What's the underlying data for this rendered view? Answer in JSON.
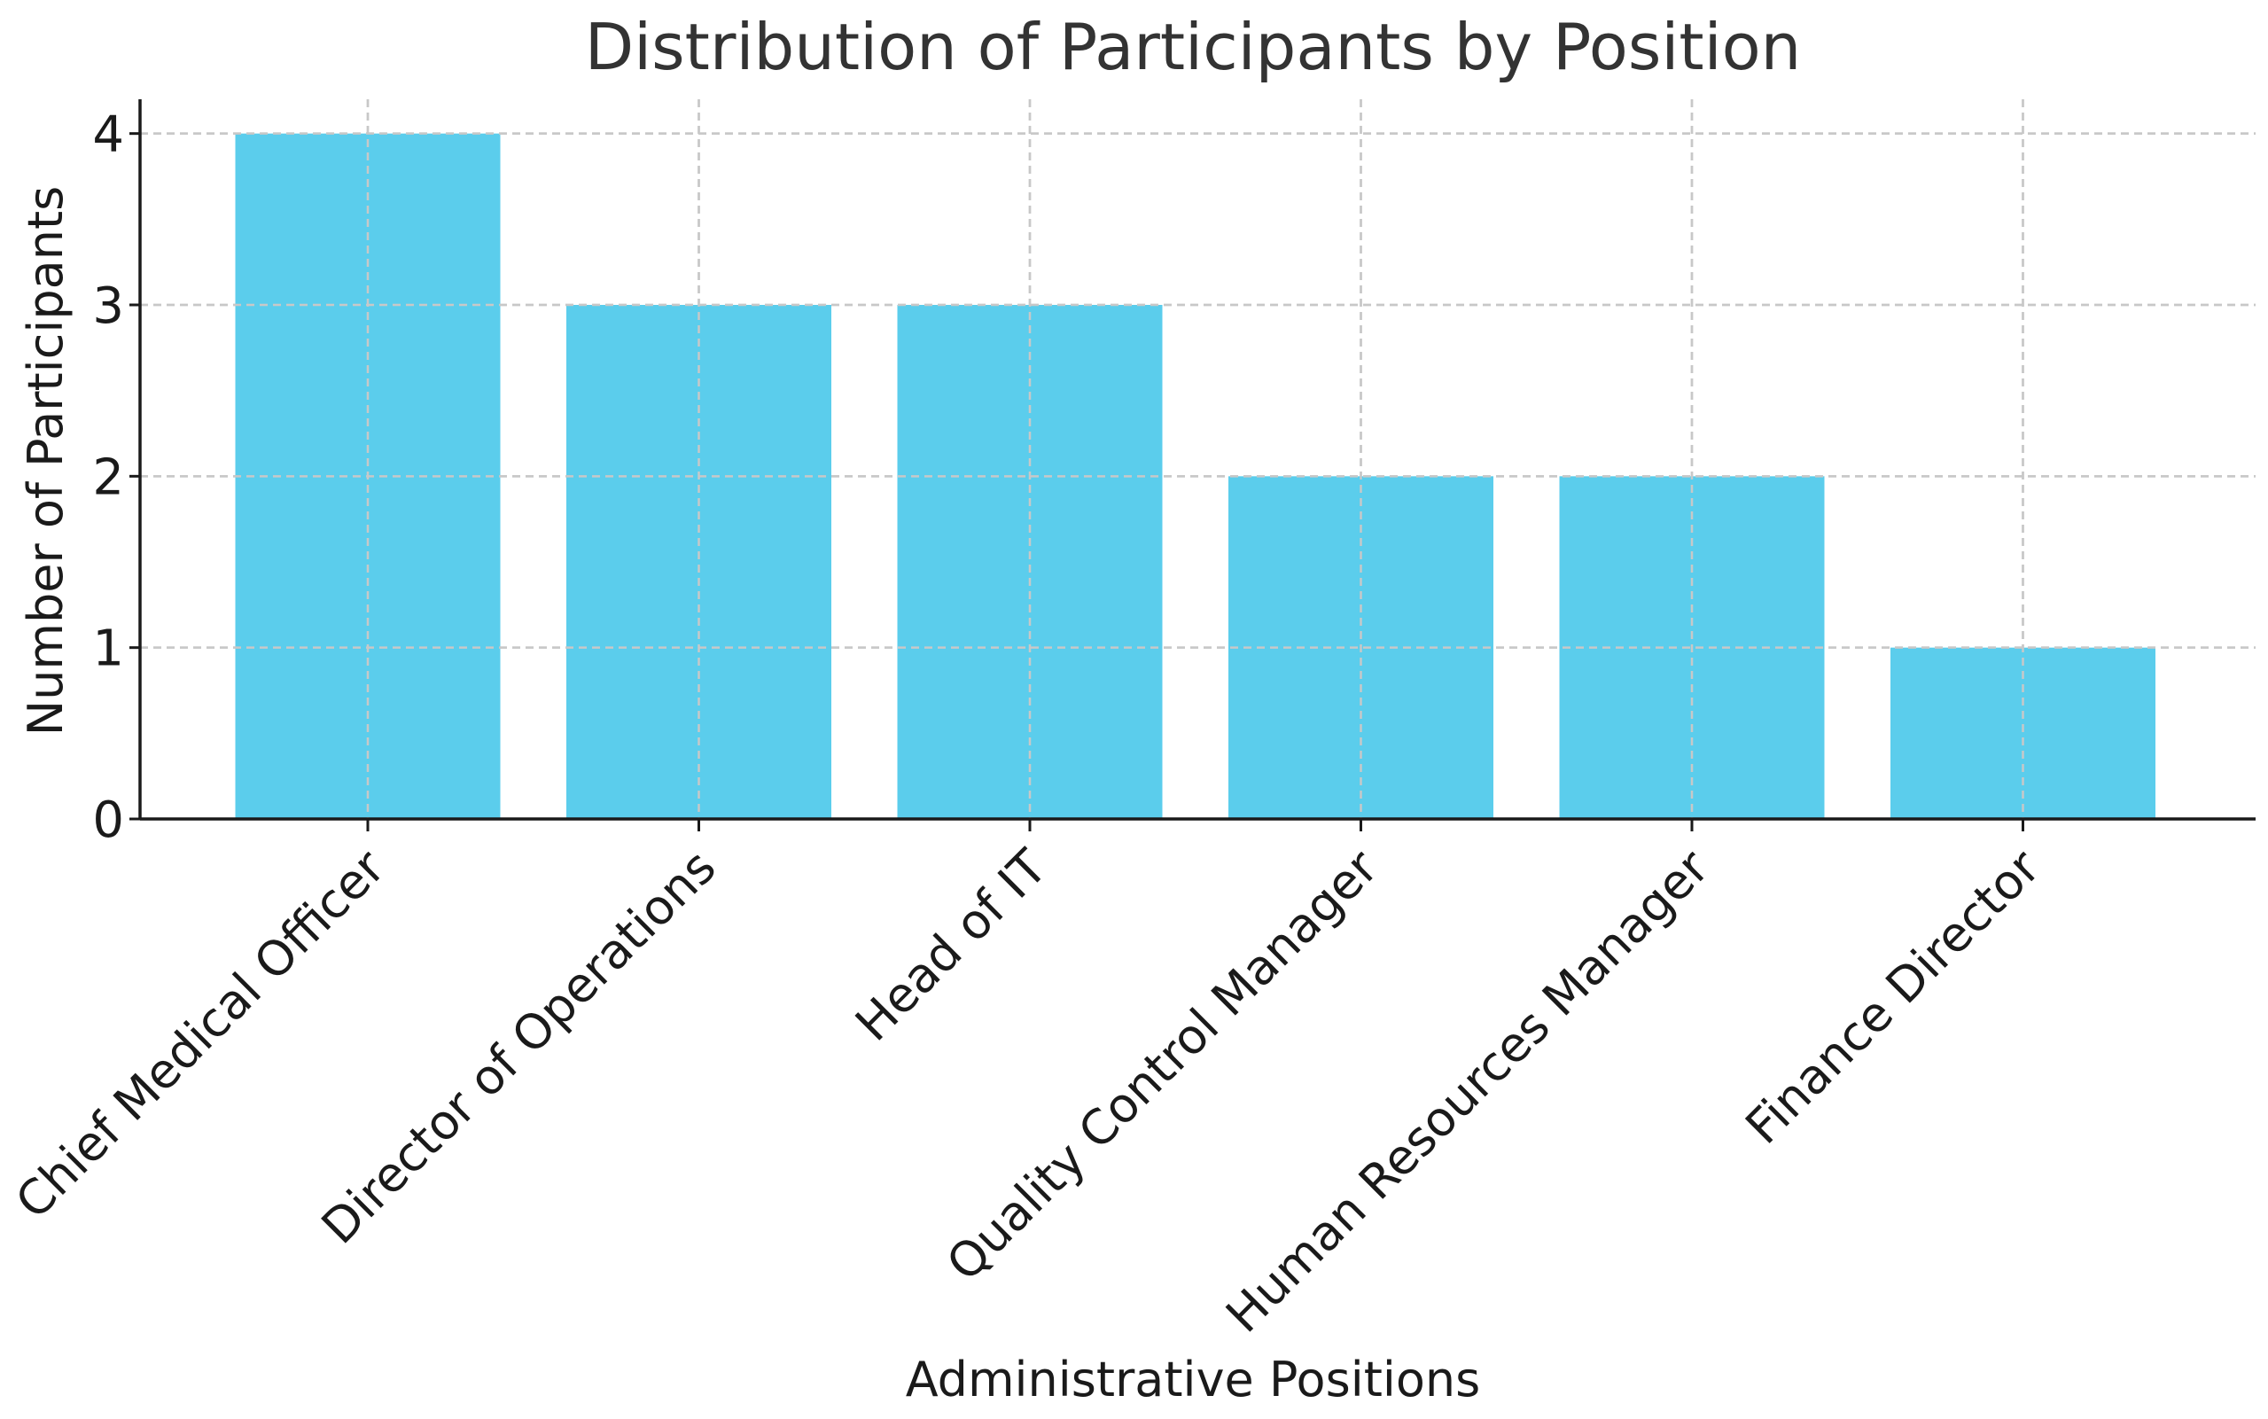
{
  "chart_data": {
    "type": "bar",
    "title": "Distribution of Participants by Position",
    "xlabel": "Administrative Positions",
    "ylabel": "Number of Participants",
    "categories": [
      "Chief Medical Officer",
      "Director of Operations",
      "Head of IT",
      "Quality Control Manager",
      "Human Resources Manager",
      "Finance Director"
    ],
    "values": [
      4,
      3,
      3,
      2,
      2,
      1
    ],
    "ylim": [
      0,
      4.2
    ],
    "yticks": [
      0,
      1,
      2,
      3,
      4
    ],
    "grid": true,
    "bar_color": "#5bcdec",
    "legend": "none"
  }
}
